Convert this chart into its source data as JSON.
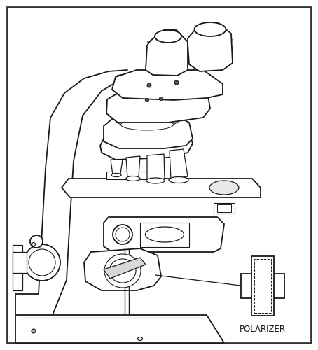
{
  "background_color": "#ffffff",
  "line_color": "#1a1a1a",
  "figsize": [
    4.54,
    5.0
  ],
  "dpi": 100,
  "polarizer_label": "POLARIZER"
}
